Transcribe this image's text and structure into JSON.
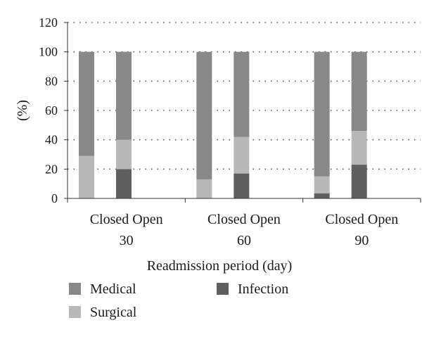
{
  "chart_data": {
    "type": "bar",
    "stacked": true,
    "ylabel": "(%)",
    "xlabel": "Readmission period (day)",
    "ylim": [
      0,
      120
    ],
    "yticks": [
      0,
      20,
      40,
      60,
      80,
      100,
      120
    ],
    "grid": "dotted horizontal",
    "groups": [
      "30",
      "60",
      "90"
    ],
    "categories": [
      "Closed",
      "Open",
      "Closed",
      "Open",
      "Closed",
      "Open"
    ],
    "group_of_bar": [
      0,
      0,
      1,
      1,
      2,
      2
    ],
    "series": [
      {
        "name": "Infection",
        "color": "#5f5f5f",
        "values": [
          0,
          20,
          0,
          17,
          3.5,
          23
        ]
      },
      {
        "name": "Surgical",
        "color": "#b8b8b8",
        "values": [
          29,
          20,
          13,
          25,
          11.5,
          23
        ]
      },
      {
        "name": "Medical",
        "color": "#888888",
        "values": [
          71,
          60,
          87,
          58,
          85,
          54
        ]
      }
    ],
    "legend": {
      "placement": "bottom",
      "order": [
        "Medical",
        "Infection",
        "Surgical"
      ]
    }
  }
}
